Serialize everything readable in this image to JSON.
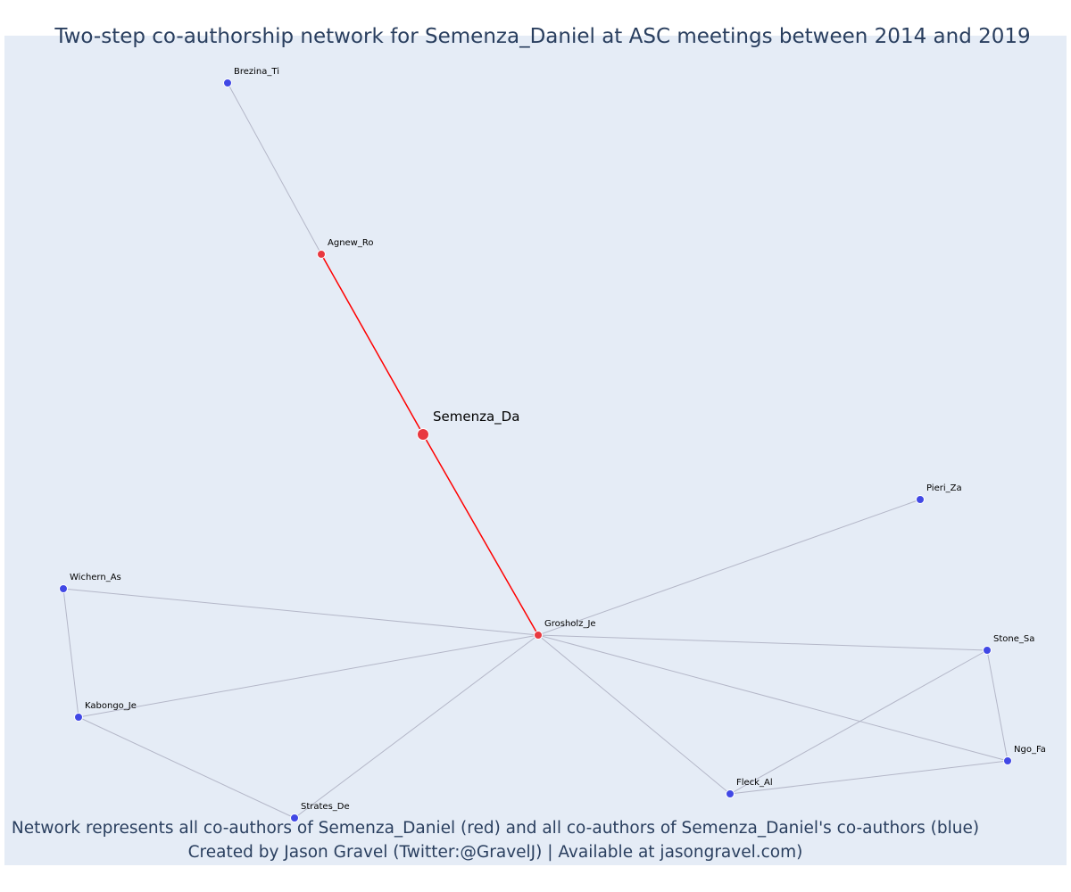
{
  "title": "Two-step co-authorship network for Semenza_Daniel at ASC meetings between 2014 and 2019",
  "caption": {
    "line1": "Network represents all co-authors of Semenza_Daniel (red) and all co-authors of Semenza_Daniel's co-authors (blue)",
    "line2": "Created by Jason Gravel (Twitter:@GravelJ) | Available at jasongravel.com)"
  },
  "colors": {
    "background": "#e5ecf6",
    "title": "#2a3f5f",
    "first_degree": "#e8383f",
    "second_degree": "#4148e5",
    "focal_edge": "#ff0000",
    "other_edge": "#b4b7c8"
  },
  "network": {
    "nodes": [
      {
        "id": "Semenza_Da",
        "label": "Semenza_Da",
        "group": "focal"
      },
      {
        "id": "Agnew_Ro",
        "label": "Agnew_Ro",
        "group": "first_degree"
      },
      {
        "id": "Grosholz_Je",
        "label": "Grosholz_Je",
        "group": "first_degree"
      },
      {
        "id": "Brezina_Ti",
        "label": "Brezina_Ti",
        "group": "second_degree"
      },
      {
        "id": "Pieri_Za",
        "label": "Pieri_Za",
        "group": "second_degree"
      },
      {
        "id": "Wichern_As",
        "label": "Wichern_As",
        "group": "second_degree"
      },
      {
        "id": "Kabongo_Je",
        "label": "Kabongo_Je",
        "group": "second_degree"
      },
      {
        "id": "Strates_De",
        "label": "Strates_De",
        "group": "second_degree"
      },
      {
        "id": "Stone_Sa",
        "label": "Stone_Sa",
        "group": "second_degree"
      },
      {
        "id": "Ngo_Fa",
        "label": "Ngo_Fa",
        "group": "second_degree"
      },
      {
        "id": "Fleck_Al",
        "label": "Fleck_Al",
        "group": "second_degree"
      }
    ],
    "edges": [
      {
        "source": "Semenza_Da",
        "target": "Agnew_Ro",
        "type": "focal"
      },
      {
        "source": "Semenza_Da",
        "target": "Grosholz_Je",
        "type": "focal"
      },
      {
        "source": "Agnew_Ro",
        "target": "Brezina_Ti",
        "type": "other"
      },
      {
        "source": "Grosholz_Je",
        "target": "Pieri_Za",
        "type": "other"
      },
      {
        "source": "Grosholz_Je",
        "target": "Wichern_As",
        "type": "other"
      },
      {
        "source": "Grosholz_Je",
        "target": "Kabongo_Je",
        "type": "other"
      },
      {
        "source": "Grosholz_Je",
        "target": "Strates_De",
        "type": "other"
      },
      {
        "source": "Grosholz_Je",
        "target": "Stone_Sa",
        "type": "other"
      },
      {
        "source": "Grosholz_Je",
        "target": "Ngo_Fa",
        "type": "other"
      },
      {
        "source": "Grosholz_Je",
        "target": "Fleck_Al",
        "type": "other"
      },
      {
        "source": "Wichern_As",
        "target": "Kabongo_Je",
        "type": "other"
      },
      {
        "source": "Kabongo_Je",
        "target": "Strates_De",
        "type": "other"
      },
      {
        "source": "Stone_Sa",
        "target": "Ngo_Fa",
        "type": "other"
      },
      {
        "source": "Stone_Sa",
        "target": "Fleck_Al",
        "type": "other"
      },
      {
        "source": "Ngo_Fa",
        "target": "Fleck_Al",
        "type": "other"
      }
    ]
  }
}
